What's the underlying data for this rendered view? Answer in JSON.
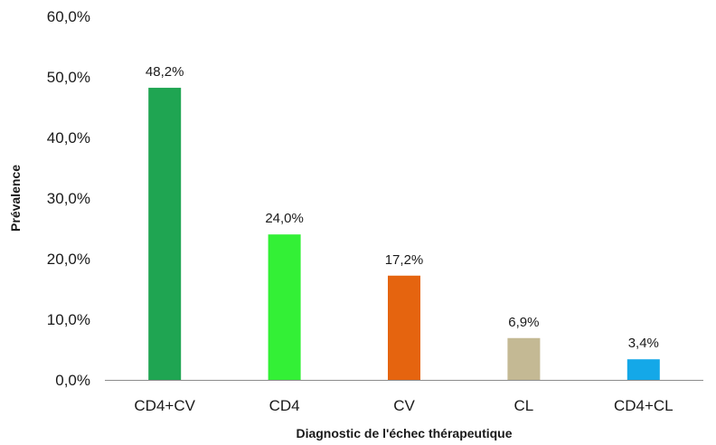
{
  "chart_data": {
    "type": "bar",
    "title": "",
    "xlabel": "Diagnostic de l'échec thérapeutique",
    "ylabel": "Prévalence",
    "ylim": [
      0,
      60
    ],
    "y_ticks": [
      0,
      10,
      20,
      30,
      40,
      50,
      60
    ],
    "y_tick_labels": [
      "0,0%",
      "10,0%",
      "20,0%",
      "30,0%",
      "40,0%",
      "50,0%",
      "60,0%"
    ],
    "grid": false,
    "legend": "none",
    "categories": [
      "CD4+CV",
      "CD4",
      "CV",
      "CL",
      "CD4+CL"
    ],
    "values": [
      48.2,
      24.0,
      17.2,
      6.9,
      3.4
    ],
    "value_labels": [
      "48,2%",
      "24,0%",
      "17,2%",
      "6,9%",
      "3,4%"
    ],
    "colors": [
      "#1fa552",
      "#33f036",
      "#e5640f",
      "#c4b994",
      "#14a8e8"
    ]
  }
}
